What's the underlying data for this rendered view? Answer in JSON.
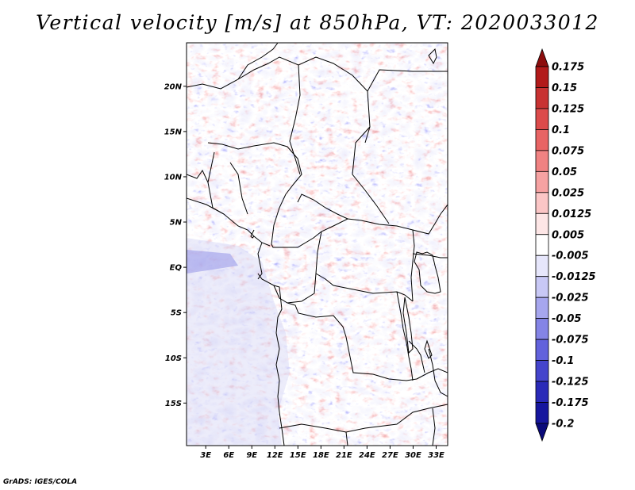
{
  "title": "Vertical velocity [m/s] at 850hPa, VT: 2020033012",
  "footer": "GrADS: IGES/COLA",
  "map": {
    "lat_labels": [
      "20N",
      "15N",
      "10N",
      "5N",
      "EQ",
      "5S",
      "10S",
      "15S"
    ],
    "lat_values": [
      20,
      15,
      10,
      5,
      0,
      -5,
      -10,
      -15
    ],
    "lon_labels": [
      "3E",
      "6E",
      "9E",
      "12E",
      "15E",
      "18E",
      "21E",
      "24E",
      "27E",
      "30E",
      "33E"
    ],
    "lon_values": [
      3,
      6,
      9,
      12,
      15,
      18,
      21,
      24,
      27,
      30,
      33
    ],
    "lat_range": [
      -19.7,
      24.8
    ],
    "lon_range": [
      0.5,
      34.5
    ]
  },
  "colorbar": {
    "labels": [
      "0.175",
      "0.15",
      "0.125",
      "0.1",
      "0.075",
      "0.05",
      "0.025",
      "0.0125",
      "0.005",
      "-0.005",
      "-0.0125",
      "-0.025",
      "-0.05",
      "-0.075",
      "-0.1",
      "-0.125",
      "-0.175",
      "-0.2"
    ],
    "colors": [
      "#8c0d0d",
      "#b21a1a",
      "#c83232",
      "#dc4b4b",
      "#e86464",
      "#f08282",
      "#f6a2a2",
      "#fbc6c6",
      "#fde6e6",
      "#ffffff",
      "#e6e6fb",
      "#c8c8f5",
      "#a6a6ee",
      "#8484e6",
      "#6262dc",
      "#4444cc",
      "#2a2ab8",
      "#16169e",
      "#0a0a7a"
    ]
  }
}
